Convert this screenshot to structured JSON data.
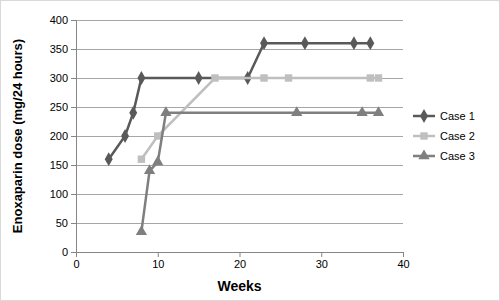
{
  "chart_data": {
    "type": "line",
    "x_label": "Weeks",
    "y_label": "Enoxaparin dose (mg/24 hours)",
    "xlim": [
      0,
      40
    ],
    "xticks": [
      0,
      10,
      20,
      30,
      40
    ],
    "ylim": [
      0,
      400
    ],
    "yticks": [
      0,
      50,
      100,
      150,
      200,
      250,
      300,
      350,
      400
    ],
    "grid": true,
    "legend": "right",
    "series": [
      {
        "name": "Case 1",
        "color": "#595959",
        "marker": "diamond",
        "line_style": "solid",
        "x": [
          4,
          6,
          7,
          8,
          15,
          21,
          23,
          28,
          34,
          36
        ],
        "values": [
          160,
          200,
          240,
          300,
          300,
          300,
          360,
          360,
          360,
          360
        ]
      },
      {
        "name": "Case 2",
        "color": "#bfbfbf",
        "marker": "square",
        "line_style": "solid",
        "x": [
          8,
          10,
          17,
          23,
          26,
          36,
          37
        ],
        "values": [
          160,
          200,
          300,
          300,
          300,
          300,
          300
        ]
      },
      {
        "name": "Case 3",
        "color": "#7f7f7f",
        "marker": "triangle",
        "line_style": "solid",
        "x": [
          8,
          9,
          10,
          11,
          27,
          35,
          37
        ],
        "values": [
          35,
          140,
          155,
          240,
          240,
          240,
          240
        ]
      }
    ]
  }
}
